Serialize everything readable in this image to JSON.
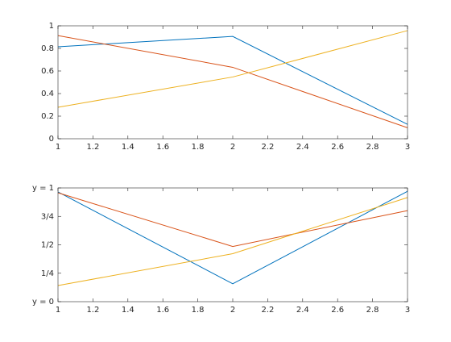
{
  "chart_data": [
    {
      "type": "line",
      "x": [
        1,
        2,
        3
      ],
      "series": [
        {
          "color": "#0072BD",
          "values": [
            0.8147,
            0.9058,
            0.127
          ]
        },
        {
          "color": "#D95319",
          "values": [
            0.9134,
            0.6324,
            0.0975
          ]
        },
        {
          "color": "#EDB120",
          "values": [
            0.2785,
            0.5469,
            0.9575
          ]
        }
      ],
      "xlim": [
        1,
        3
      ],
      "xticks": [
        1,
        1.2,
        1.4,
        1.6,
        1.8,
        2,
        2.2,
        2.4,
        2.6,
        2.8,
        3
      ],
      "ylim": [
        0,
        1
      ],
      "yticks": [
        0,
        0.2,
        0.4,
        0.6,
        0.8,
        1
      ]
    },
    {
      "type": "line",
      "x": [
        1,
        2,
        3
      ],
      "series": [
        {
          "color": "#0072BD",
          "values": [
            0.9649,
            0.1576,
            0.9706
          ]
        },
        {
          "color": "#D95319",
          "values": [
            0.9572,
            0.4854,
            0.8003
          ]
        },
        {
          "color": "#EDB120",
          "values": [
            0.1419,
            0.4218,
            0.9157
          ]
        }
      ],
      "xlim": [
        1,
        3
      ],
      "xticks": [
        1,
        1.2,
        1.4,
        1.6,
        1.8,
        2,
        2.2,
        2.4,
        2.6,
        2.8,
        3
      ],
      "ylim": [
        0,
        1
      ],
      "yticks": [
        {
          "value": 0,
          "label": "y = 0"
        },
        {
          "value": 0.25,
          "label": "1/4"
        },
        {
          "value": 0.5,
          "label": "1/2"
        },
        {
          "value": 0.75,
          "label": "3/4"
        },
        {
          "value": 1,
          "label": "y = 1"
        }
      ]
    }
  ]
}
